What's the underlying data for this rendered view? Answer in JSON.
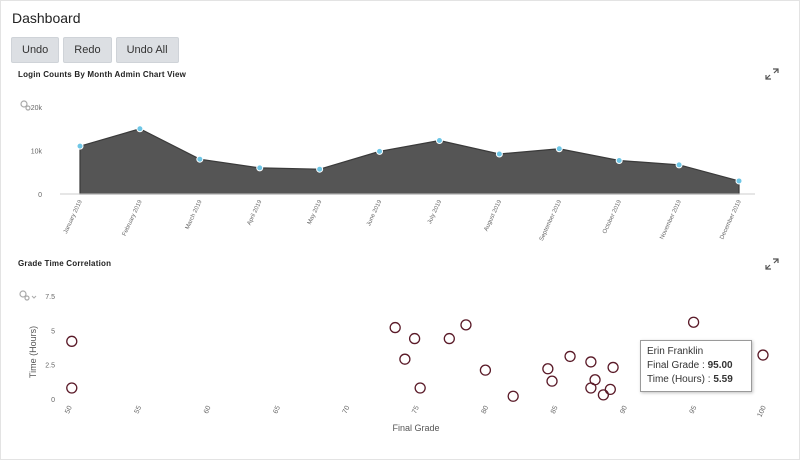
{
  "page": {
    "title": "Dashboard"
  },
  "toolbar": {
    "undo": "Undo",
    "redo": "Redo",
    "undo_all": "Undo All"
  },
  "chart1": {
    "title": "Login Counts By Month Admin Chart View"
  },
  "chart2": {
    "title": "Grade Time Correlation",
    "tooltip": {
      "name": "Erin Franklin",
      "grade_label": "Final Grade",
      "grade_value": "95.00",
      "time_label": "Time (Hours)",
      "time_value": "5.59"
    }
  },
  "colors": {
    "area_fill": "#555555",
    "area_marker": "#6ec6e6",
    "scatter_stroke": "#5a1a28",
    "button_bg": "#dcdfe3"
  },
  "icons": {
    "settings": "gears-icon",
    "expand": "expand-arrows-icon"
  },
  "chart_data": [
    {
      "type": "area",
      "title": "Login Counts By Month Admin Chart View",
      "categories": [
        "January 2019",
        "February 2019",
        "March 2019",
        "April 2019",
        "May 2019",
        "June 2019",
        "July 2019",
        "August 2019",
        "September 2019",
        "October 2019",
        "November 2019",
        "December 2019"
      ],
      "values": [
        11000,
        15000,
        8000,
        6000,
        5700,
        9800,
        12300,
        9200,
        10400,
        7700,
        6700,
        3000
      ],
      "yticks": [
        "0",
        "10k",
        "20k"
      ],
      "ylim": [
        0,
        20000
      ],
      "grid": false
    },
    {
      "type": "scatter",
      "title": "Grade Time Correlation",
      "xlabel": "Final Grade",
      "ylabel": "Time (Hours)",
      "xticks": [
        "50",
        "55",
        "60",
        "65",
        "70",
        "75",
        "80",
        "85",
        "90",
        "95",
        "100"
      ],
      "yticks": [
        "0",
        "2.5",
        "5",
        "7.5"
      ],
      "xlim": [
        50,
        100
      ],
      "ylim": [
        0,
        7.5
      ],
      "points": [
        {
          "x": 50.2,
          "y": 4.2
        },
        {
          "x": 50.2,
          "y": 0.8
        },
        {
          "x": 73.5,
          "y": 5.2
        },
        {
          "x": 74.2,
          "y": 2.9
        },
        {
          "x": 74.9,
          "y": 4.4
        },
        {
          "x": 75.3,
          "y": 0.8
        },
        {
          "x": 77.4,
          "y": 4.4
        },
        {
          "x": 78.6,
          "y": 5.4
        },
        {
          "x": 80.0,
          "y": 2.1
        },
        {
          "x": 82.0,
          "y": 0.2
        },
        {
          "x": 84.5,
          "y": 2.2
        },
        {
          "x": 84.8,
          "y": 1.3
        },
        {
          "x": 86.1,
          "y": 3.1
        },
        {
          "x": 87.6,
          "y": 2.7
        },
        {
          "x": 87.6,
          "y": 0.8
        },
        {
          "x": 87.9,
          "y": 1.4
        },
        {
          "x": 88.5,
          "y": 0.3
        },
        {
          "x": 89.0,
          "y": 0.7
        },
        {
          "x": 89.2,
          "y": 2.3
        },
        {
          "x": 95.0,
          "y": 5.59
        },
        {
          "x": 100.0,
          "y": 3.2
        }
      ]
    }
  ]
}
